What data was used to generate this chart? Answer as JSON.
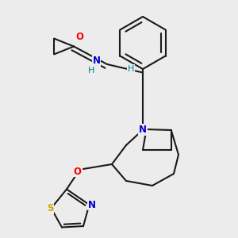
{
  "bg_color": "#ececec",
  "bond_color": "#1a1a1a",
  "atom_colors": {
    "O": "#ff0000",
    "N": "#0000cc",
    "S": "#ccaa00",
    "H": "#008080",
    "C": "#1a1a1a"
  },
  "figsize": [
    3.0,
    3.0
  ],
  "dpi": 100
}
